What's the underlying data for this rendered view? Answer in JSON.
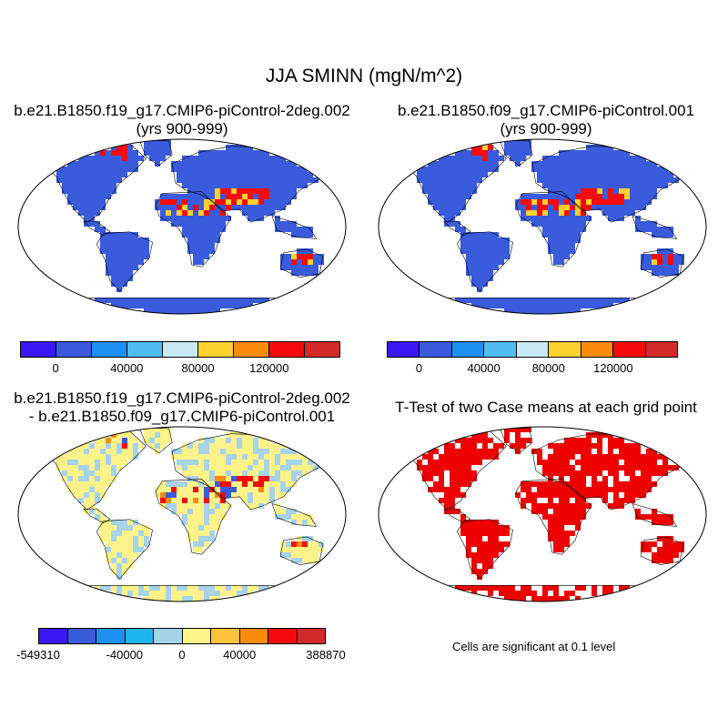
{
  "title": "JJA SMINN (mgN/m^2)",
  "panels": {
    "top_left": {
      "title_line1": "b.e21.B1850.f19_g17.CMIP6-piControl-2deg.002",
      "title_line2": "(yrs 900-999)"
    },
    "top_right": {
      "title_line1": "b.e21.B1850.f09_g17.CMIP6-piControl.001",
      "title_line2": "(yrs 900-999)"
    },
    "bottom_left": {
      "title_line1": "b.e21.B1850.f19_g17.CMIP6-piControl-2deg.002",
      "title_line2": "- b.e21.B1850.f09_g17.CMIP6-piControl.001"
    },
    "bottom_right": {
      "title_line1": "T-Test of two Case means at each grid point",
      "note": "Cells are significant at 0.1 level"
    }
  },
  "colorbars": {
    "case": {
      "colors": [
        "#3b17f5",
        "#3a5bdc",
        "#1e90ef",
        "#50bdef",
        "#c9e9f5",
        "#fdd12e",
        "#fb8b0c",
        "#f50b0b",
        "#d22a2a"
      ],
      "labels": [
        "0",
        "40000",
        "80000",
        "120000"
      ]
    },
    "diff": {
      "colors": [
        "#3b17f5",
        "#3a5bdc",
        "#1e90ef",
        "#1fb6f0",
        "#a6d2ea",
        "#fcf28a",
        "#fec23d",
        "#fb8b0c",
        "#f50b0b",
        "#d22a2a"
      ],
      "labels": [
        "-549310",
        "-40000",
        "0",
        "40000",
        "388870"
      ]
    }
  },
  "map_colors": {
    "case_land": "#3a5bdc",
    "case_hot": "#f50b0b",
    "case_warm": "#fdd12e",
    "diff_land": "#fcf28a",
    "diff_cool": "#a6d2ea",
    "signif": "#ee0000"
  }
}
